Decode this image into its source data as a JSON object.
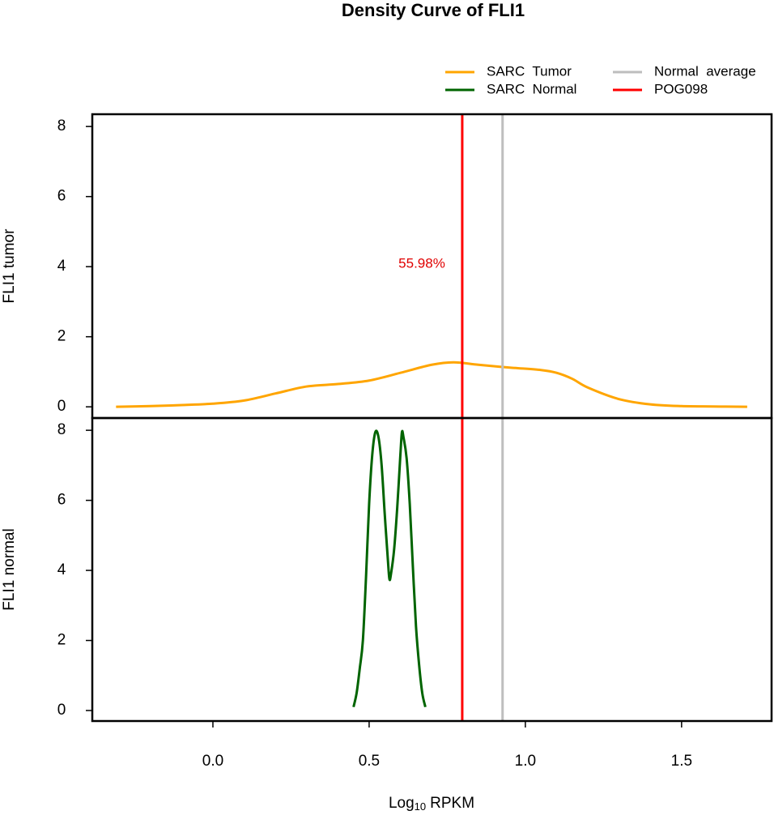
{
  "chart_data": {
    "type": "line",
    "title": "Density Curve of  FLI1",
    "xlabel": [
      "Log",
      "10",
      "RPKM"
    ],
    "xlim": [
      -0.386,
      1.788
    ],
    "xticks": [
      {
        "value": 0,
        "label": "0.0"
      },
      0.5,
      {
        "value": 1,
        "label": "1.0"
      },
      1.5
    ],
    "panels": [
      {
        "ylabel": "FLI1  tumor",
        "ylim": [
          -0.32,
          8.35
        ],
        "yticks": [
          0,
          2,
          4,
          6,
          8
        ],
        "series": [
          {
            "name": "SARC  Tumor",
            "color": "#FFA500",
            "x": [
              -0.31,
              -0.2,
              -0.1,
              0.0,
              0.1,
              0.2,
              0.3,
              0.4,
              0.5,
              0.6,
              0.7,
              0.77,
              0.85,
              0.95,
              1.05,
              1.1,
              1.15,
              1.2,
              1.3,
              1.4,
              1.5,
              1.6,
              1.71
            ],
            "values": [
              0,
              0.02,
              0.05,
              0.09,
              0.18,
              0.38,
              0.58,
              0.65,
              0.75,
              0.97,
              1.2,
              1.27,
              1.2,
              1.12,
              1.05,
              0.97,
              0.8,
              0.55,
              0.22,
              0.07,
              0.02,
              0.01,
              0
            ]
          }
        ],
        "annotation": "55.98%"
      },
      {
        "ylabel": "FLI1  normal",
        "ylim": [
          -0.3,
          8.35
        ],
        "yticks": [
          0,
          2,
          4,
          6,
          8
        ],
        "series": [
          {
            "name": "SARC  Normal",
            "color": "#006400",
            "x": [
              0.45,
              0.46,
              0.47,
              0.48,
              0.49,
              0.5,
              0.51,
              0.52,
              0.53,
              0.54,
              0.55,
              0.56,
              0.565,
              0.57,
              0.58,
              0.59,
              0.6,
              0.605,
              0.61,
              0.62,
              0.63,
              0.64,
              0.65,
              0.66,
              0.67,
              0.68
            ],
            "values": [
              0.1,
              0.5,
              1.2,
              2.0,
              3.8,
              5.9,
              7.3,
              7.95,
              7.8,
              7.0,
              5.6,
              4.3,
              3.75,
              3.9,
              4.6,
              5.8,
              7.3,
              7.95,
              7.8,
              7.2,
              5.9,
              4.1,
              2.4,
              1.3,
              0.5,
              0.1
            ]
          }
        ]
      }
    ],
    "vlines": [
      {
        "name": "Normal  average",
        "color": "#BEBEBE",
        "value": 0.927
      },
      {
        "name": "POG098",
        "color": "#FF0000",
        "value": 0.798
      }
    ]
  }
}
